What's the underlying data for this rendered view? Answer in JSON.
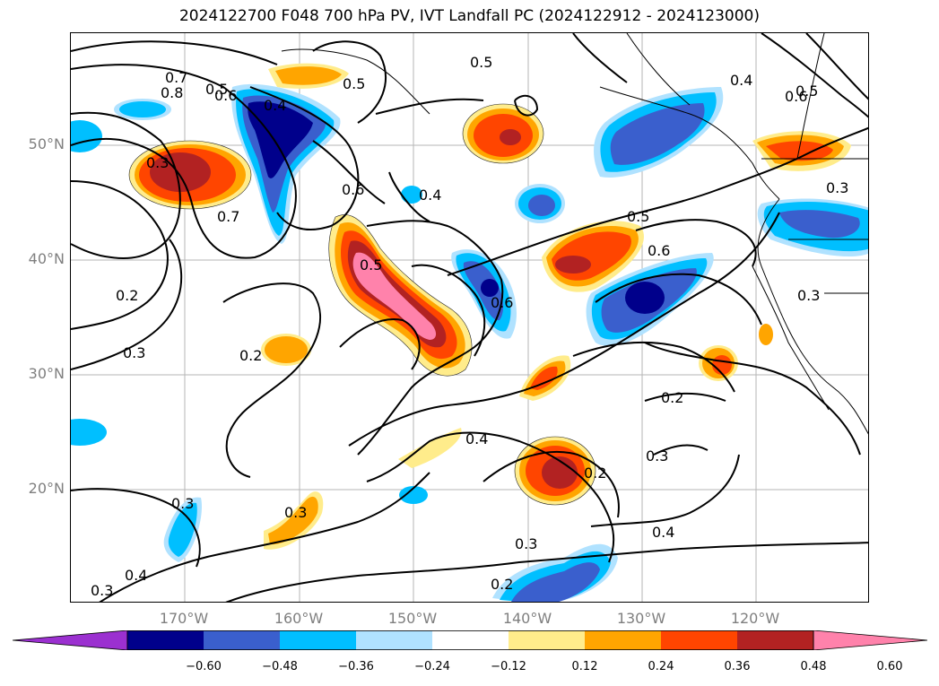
{
  "title": "2024122700 F048 700 hPa PV, IVT Landfall PC (2024122912 - 2024123000)",
  "lat_labels": [
    "50°N",
    "40°N",
    "30°N",
    "20°N"
  ],
  "lon_labels": [
    "170°W",
    "160°W",
    "150°W",
    "140°W",
    "130°W",
    "120°W"
  ],
  "colorbar": {
    "ticks": [
      "−0.60",
      "−0.48",
      "−0.36",
      "−0.24",
      "−0.12",
      "0.12",
      "0.24",
      "0.36",
      "0.48",
      "0.60"
    ],
    "colors": [
      "#9b30d0",
      "#00008b",
      "#3a5fcd",
      "#00bfff",
      "#b0e2ff",
      "#ffffff",
      "#ffec8b",
      "#ffa500",
      "#ff4500",
      "#b22222",
      "#ff82ab"
    ]
  },
  "contour_labels": [
    "0.5",
    "0.5",
    "0.4",
    "0.5",
    "0.5",
    "0.7",
    "0.6",
    "0.8",
    "0.4",
    "0.3",
    "0.7",
    "0.6",
    "0.4",
    "0.5",
    "0.6",
    "0.5",
    "0.6",
    "0.2",
    "0.3",
    "0.2",
    "0.4",
    "0.2",
    "0.3",
    "0.2",
    "0.3",
    "0.4",
    "0.3",
    "0.2",
    "0.3",
    "0.4",
    "0.3",
    "0.3",
    "0.6",
    "0.3"
  ]
}
